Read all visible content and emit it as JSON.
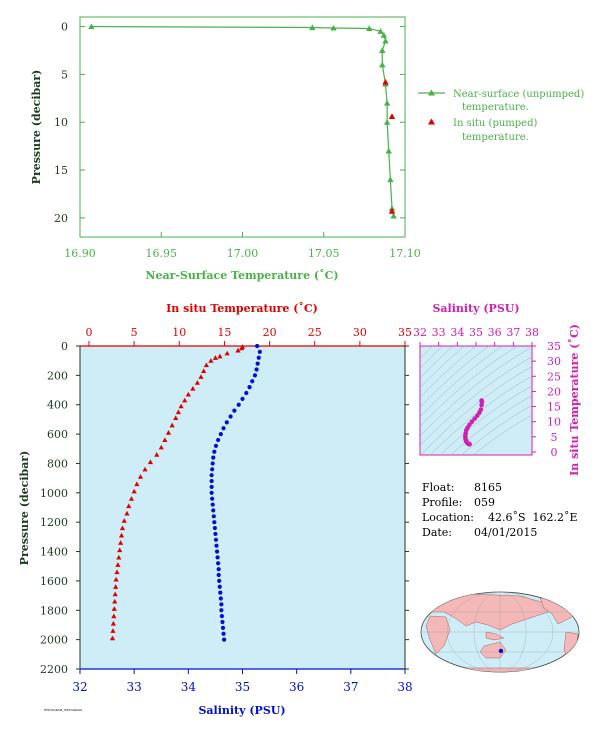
{
  "colors": {
    "green": "#4ab04a",
    "red": "#e00000",
    "blue": "#0010d0",
    "magenta": "#d020b0",
    "panel_bg": "#cfedf6",
    "axis_dark": "#1e3a1e",
    "map_land": "#f4b8b8",
    "map_ocean": "#cfedf6"
  },
  "chart_data": [
    {
      "type": "line",
      "id": "top",
      "xlabel": "Near-Surface Temperature (˚C)",
      "ylabel": "Pressure (decibar)",
      "xlim": [
        16.9,
        17.1
      ],
      "ylim": [
        22,
        -1
      ],
      "xticks": [
        16.9,
        16.95,
        17.0,
        17.05,
        17.1
      ],
      "xtick_labels": [
        "16.90",
        "16.95",
        "17.00",
        "17.05",
        "17.10"
      ],
      "yticks": [
        0,
        5,
        10,
        15,
        20
      ],
      "series": [
        {
          "name": "Near-surface (unpumped) temperature.",
          "legend_lines": [
            "Near-surface (unpumped)",
            "temperature."
          ],
          "color": "#4ab04a",
          "marker": "triangle",
          "points": [
            [
              16.907,
              0.0
            ],
            [
              17.043,
              0.1
            ],
            [
              17.056,
              0.15
            ],
            [
              17.078,
              0.2
            ],
            [
              17.085,
              0.5
            ],
            [
              17.087,
              0.9
            ],
            [
              17.088,
              1.5
            ],
            [
              17.086,
              2.5
            ],
            [
              17.086,
              4.0
            ],
            [
              17.088,
              6.0
            ],
            [
              17.089,
              8.0
            ],
            [
              17.089,
              10.0
            ],
            [
              17.09,
              13.0
            ],
            [
              17.091,
              16.0
            ],
            [
              17.092,
              19.0
            ],
            [
              17.093,
              19.8
            ]
          ]
        },
        {
          "name": "In situ (pumped) temperature.",
          "legend_lines": [
            "In situ (pumped)",
            "temperature."
          ],
          "color": "#e00000",
          "marker": "triangle",
          "points": [
            [
              17.088,
              5.8
            ],
            [
              17.092,
              9.4
            ],
            [
              17.092,
              19.3
            ]
          ]
        }
      ]
    },
    {
      "type": "scatter",
      "id": "main",
      "ylabel": "Pressure (decibar)",
      "ylim": [
        2200,
        0
      ],
      "yticks": [
        0,
        200,
        400,
        600,
        800,
        1000,
        1200,
        1400,
        1600,
        1800,
        2000,
        2200
      ],
      "top_axis": {
        "label": "In situ Temperature (˚C)",
        "lim": [
          -1,
          35
        ],
        "ticks": [
          0,
          5,
          10,
          15,
          20,
          25,
          30,
          35
        ]
      },
      "bottom_axis": {
        "label": "Salinity (PSU)",
        "lim": [
          32,
          38
        ],
        "ticks": [
          32,
          33,
          34,
          35,
          36,
          37,
          38
        ]
      },
      "series": [
        {
          "name": "In situ Temperature",
          "axis": "top",
          "color": "#e00000",
          "marker": "triangle",
          "points": [
            [
              17.0,
              5
            ],
            [
              16.9,
              15
            ],
            [
              16.5,
              30
            ],
            [
              15.3,
              50
            ],
            [
              14.5,
              70
            ],
            [
              14.0,
              80
            ],
            [
              13.5,
              100
            ],
            [
              13.0,
              130
            ],
            [
              12.7,
              170
            ],
            [
              12.4,
              210
            ],
            [
              12.0,
              250
            ],
            [
              11.5,
              290
            ],
            [
              11.0,
              330
            ],
            [
              10.6,
              370
            ],
            [
              10.2,
              410
            ],
            [
              9.9,
              450
            ],
            [
              9.6,
              490
            ],
            [
              9.2,
              540
            ],
            [
              8.8,
              590
            ],
            [
              8.4,
              640
            ],
            [
              8.0,
              690
            ],
            [
              7.5,
              740
            ],
            [
              6.8,
              790
            ],
            [
              6.2,
              840
            ],
            [
              5.7,
              890
            ],
            [
              5.3,
              940
            ],
            [
              5.0,
              990
            ],
            [
              4.7,
              1040
            ],
            [
              4.4,
              1090
            ],
            [
              4.2,
              1140
            ],
            [
              3.9,
              1190
            ],
            [
              3.7,
              1240
            ],
            [
              3.6,
              1290
            ],
            [
              3.5,
              1340
            ],
            [
              3.4,
              1390
            ],
            [
              3.3,
              1440
            ],
            [
              3.2,
              1490
            ],
            [
              3.1,
              1540
            ],
            [
              3.0,
              1590
            ],
            [
              2.95,
              1640
            ],
            [
              2.9,
              1690
            ],
            [
              2.85,
              1740
            ],
            [
              2.8,
              1790
            ],
            [
              2.75,
              1840
            ],
            [
              2.7,
              1890
            ],
            [
              2.65,
              1940
            ],
            [
              2.6,
              1990
            ]
          ]
        },
        {
          "name": "Salinity",
          "axis": "bottom",
          "color": "#0010d0",
          "marker": "dot",
          "points": [
            [
              35.27,
              0
            ],
            [
              35.32,
              40
            ],
            [
              35.3,
              80
            ],
            [
              35.28,
              120
            ],
            [
              35.26,
              160
            ],
            [
              35.23,
              200
            ],
            [
              35.18,
              240
            ],
            [
              35.13,
              280
            ],
            [
              35.07,
              320
            ],
            [
              35.0,
              360
            ],
            [
              34.93,
              400
            ],
            [
              34.85,
              440
            ],
            [
              34.78,
              480
            ],
            [
              34.71,
              520
            ],
            [
              34.65,
              560
            ],
            [
              34.6,
              600
            ],
            [
              34.55,
              640
            ],
            [
              34.51,
              680
            ],
            [
              34.48,
              720
            ],
            [
              34.46,
              760
            ],
            [
              34.45,
              800
            ],
            [
              34.44,
              840
            ],
            [
              34.43,
              880
            ],
            [
              34.43,
              920
            ],
            [
              34.43,
              960
            ],
            [
              34.43,
              1000
            ],
            [
              34.44,
              1040
            ],
            [
              34.45,
              1080
            ],
            [
              34.46,
              1120
            ],
            [
              34.47,
              1160
            ],
            [
              34.48,
              1200
            ],
            [
              34.49,
              1240
            ],
            [
              34.5,
              1280
            ],
            [
              34.51,
              1320
            ],
            [
              34.52,
              1360
            ],
            [
              34.53,
              1400
            ],
            [
              34.54,
              1440
            ],
            [
              34.55,
              1480
            ],
            [
              34.56,
              1520
            ],
            [
              34.56,
              1560
            ],
            [
              34.57,
              1600
            ],
            [
              34.58,
              1640
            ],
            [
              34.59,
              1680
            ],
            [
              34.6,
              1720
            ],
            [
              34.61,
              1760
            ],
            [
              34.61,
              1800
            ],
            [
              34.62,
              1840
            ],
            [
              34.63,
              1880
            ],
            [
              34.64,
              1920
            ],
            [
              34.65,
              1960
            ],
            [
              34.66,
              2000
            ]
          ]
        }
      ]
    },
    {
      "type": "scatter",
      "id": "ts",
      "top_axis": {
        "label": "Salinity (PSU)",
        "lim": [
          32,
          38
        ],
        "ticks": [
          32,
          33,
          34,
          35,
          36,
          37,
          38
        ]
      },
      "right_axis": {
        "label": "In situ Temperature (˚C)",
        "lim": [
          -1,
          35
        ],
        "ticks": [
          0,
          5,
          10,
          15,
          20,
          25,
          30,
          35
        ]
      },
      "series": [
        {
          "name": "T-S",
          "color": "#d020b0",
          "points": [
            [
              35.3,
              17.0
            ],
            [
              35.32,
              16.5
            ],
            [
              35.3,
              15.5
            ],
            [
              35.26,
              14.0
            ],
            [
              35.18,
              13.0
            ],
            [
              35.07,
              12.0
            ],
            [
              34.93,
              11.0
            ],
            [
              34.78,
              10.0
            ],
            [
              34.65,
              9.0
            ],
            [
              34.55,
              8.0
            ],
            [
              34.48,
              7.2
            ],
            [
              34.45,
              6.2
            ],
            [
              34.43,
              5.4
            ],
            [
              34.43,
              4.8
            ],
            [
              34.44,
              4.2
            ],
            [
              34.46,
              3.8
            ],
            [
              34.49,
              3.4
            ],
            [
              34.52,
              3.1
            ],
            [
              34.55,
              2.9
            ],
            [
              34.58,
              2.75
            ],
            [
              34.61,
              2.65
            ],
            [
              34.64,
              2.6
            ],
            [
              34.66,
              2.55
            ]
          ]
        }
      ]
    }
  ],
  "info": {
    "float_label": "Float:",
    "float_value": "8165",
    "profile_label": "Profile:",
    "profile_value": "059",
    "location_label": "Location:",
    "location_value": "42.6˚S  162.2˚E",
    "date_label": "Date:",
    "date_value": "04/01/2015"
  },
  "map": {
    "marker_lat": -42.6,
    "marker_lon": 162.2
  },
  "footnote": "HISTOGRAM_HISTOGRAM"
}
